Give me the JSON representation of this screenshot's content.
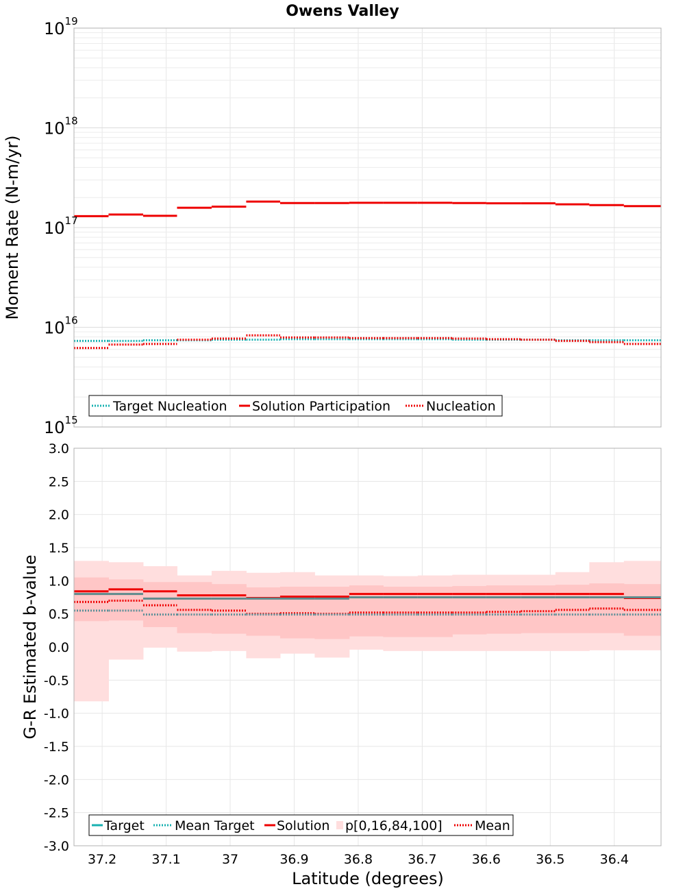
{
  "chart_data": [
    {
      "type": "line",
      "title": "Owens Valley",
      "xlabel": "",
      "ylabel": "Moment Rate (N-m/yr)",
      "yscale": "log",
      "ylim": [
        1000000000000000.0,
        1e+19
      ],
      "xlim": [
        37.244,
        36.327
      ],
      "x_reversed": true,
      "grid": true,
      "ytick_labels": [
        {
          "base": "10",
          "exp": "15"
        },
        {
          "base": "10",
          "exp": "16"
        },
        {
          "base": "10",
          "exp": "17"
        },
        {
          "base": "10",
          "exp": "18"
        },
        {
          "base": "10",
          "exp": "19"
        }
      ],
      "bin_edges": [
        37.244,
        37.19,
        37.136,
        37.083,
        37.029,
        36.975,
        36.922,
        36.868,
        36.814,
        36.761,
        36.707,
        36.653,
        36.6,
        36.546,
        36.492,
        36.439,
        36.385,
        36.327
      ],
      "legend_position": "bottom-left",
      "legend": [
        "Target Nucleation",
        "Solution Participation",
        "Nucleation"
      ],
      "series": [
        {
          "name": "Target Nucleation",
          "color": "#17b1b1",
          "style": "dotted",
          "values": [
            7300000000000000.0,
            7300000000000000.0,
            7400000000000000.0,
            7400000000000000.0,
            7500000000000000.0,
            7500000000000000.0,
            7600000000000000.0,
            7600000000000000.0,
            7600000000000000.0,
            7600000000000000.0,
            7600000000000000.0,
            7500000000000000.0,
            7500000000000000.0,
            7500000000000000.0,
            7400000000000000.0,
            7400000000000000.0,
            7400000000000000.0
          ]
        },
        {
          "name": "Solution Participation",
          "color": "#ee0000",
          "style": "solid",
          "values": [
            1.3e+17,
            1.35e+17,
            1.31e+17,
            1.58e+17,
            1.62e+17,
            1.82e+17,
            1.76e+17,
            1.76e+17,
            1.77e+17,
            1.77e+17,
            1.77e+17,
            1.76e+17,
            1.75e+17,
            1.75e+17,
            1.71e+17,
            1.68e+17,
            1.64e+17
          ]
        },
        {
          "name": "Nucleation",
          "color": "#ee0000",
          "style": "dotted",
          "values": [
            6200000000000000.0,
            6700000000000000.0,
            6800000000000000.0,
            7500000000000000.0,
            7700000000000000.0,
            8300000000000000.0,
            7900000000000000.0,
            7900000000000000.0,
            7800000000000000.0,
            7800000000000000.0,
            7800000000000000.0,
            7700000000000000.0,
            7600000000000000.0,
            7500000000000000.0,
            7300000000000000.0,
            7100000000000000.0,
            6800000000000000.0
          ]
        }
      ]
    },
    {
      "type": "line",
      "title": "",
      "xlabel": "Latitude (degrees)",
      "ylabel": "G-R Estimated b-value",
      "ylim": [
        -3.0,
        3.0
      ],
      "xlim": [
        37.244,
        36.327
      ],
      "x_reversed": true,
      "grid": true,
      "yticks": [
        3.0,
        2.5,
        2.0,
        1.5,
        1.0,
        0.5,
        0.0,
        -0.5,
        -1.0,
        -1.5,
        -2.0,
        -2.5,
        -3.0
      ],
      "ytick_labels": [
        "3.0",
        "2.5",
        "2.0",
        "1.5",
        "1.0",
        "0.5",
        "0.0",
        "-0.5",
        "-1.0",
        "-1.5",
        "-2.0",
        "-2.5",
        "-3.0"
      ],
      "xticks": [
        37.2,
        37.1,
        37.0,
        36.9,
        36.8,
        36.7,
        36.6,
        36.5,
        36.4
      ],
      "xtick_labels": [
        "37.2",
        "37.1",
        "37",
        "36.9",
        "36.8",
        "36.7",
        "36.6",
        "36.5",
        "36.4"
      ],
      "bin_edges": [
        37.244,
        37.19,
        37.136,
        37.083,
        37.029,
        36.975,
        36.922,
        36.868,
        36.814,
        36.761,
        36.707,
        36.653,
        36.6,
        36.546,
        36.492,
        36.439,
        36.385,
        36.327
      ],
      "legend_position": "bottom-left",
      "legend": [
        "Target",
        "Mean Target",
        "Solution",
        "p[0,16,84,100]",
        "Mean"
      ],
      "band_outer": {
        "name": "p[0,16,84,100]",
        "color": "#ffdede",
        "lower": [
          -0.82,
          -0.19,
          -0.01,
          -0.07,
          -0.06,
          -0.17,
          -0.1,
          -0.16,
          -0.04,
          -0.06,
          -0.06,
          -0.06,
          -0.06,
          -0.06,
          -0.06,
          -0.05,
          -0.05
        ],
        "upper": [
          1.3,
          1.28,
          1.22,
          1.08,
          1.15,
          1.12,
          1.13,
          1.08,
          1.08,
          1.07,
          1.08,
          1.09,
          1.09,
          1.09,
          1.13,
          1.28,
          1.3
        ]
      },
      "band_inner": {
        "name": "p[0,16,84,100]",
        "color": "#ffc6c6",
        "lower": [
          0.39,
          0.4,
          0.3,
          0.21,
          0.2,
          0.17,
          0.13,
          0.12,
          0.16,
          0.15,
          0.15,
          0.19,
          0.2,
          0.21,
          0.21,
          0.21,
          0.17
        ],
        "upper": [
          1.05,
          1.02,
          0.98,
          0.98,
          0.95,
          0.9,
          0.91,
          0.91,
          0.93,
          0.91,
          0.91,
          0.92,
          0.93,
          0.93,
          0.94,
          0.96,
          0.95
        ]
      },
      "series": [
        {
          "name": "Target",
          "color": "#17b1b1",
          "style": "solid",
          "values": [
            0.8,
            0.8,
            0.73,
            0.73,
            0.73,
            0.73,
            0.73,
            0.73,
            0.75,
            0.75,
            0.75,
            0.75,
            0.75,
            0.75,
            0.75,
            0.75,
            0.75
          ]
        },
        {
          "name": "Mean Target",
          "color": "#17b1b1",
          "style": "dotted",
          "values": [
            0.55,
            0.55,
            0.49,
            0.49,
            0.49,
            0.49,
            0.49,
            0.49,
            0.49,
            0.49,
            0.49,
            0.49,
            0.49,
            0.49,
            0.49,
            0.49,
            0.49
          ]
        },
        {
          "name": "Solution",
          "color": "#ee0000",
          "style": "solid",
          "values": [
            0.84,
            0.87,
            0.84,
            0.78,
            0.78,
            0.74,
            0.76,
            0.76,
            0.8,
            0.8,
            0.8,
            0.8,
            0.8,
            0.8,
            0.8,
            0.8,
            0.74
          ]
        },
        {
          "name": "Mean",
          "color": "#ee0000",
          "style": "dotted",
          "values": [
            0.68,
            0.7,
            0.63,
            0.56,
            0.55,
            0.5,
            0.51,
            0.5,
            0.52,
            0.52,
            0.52,
            0.52,
            0.53,
            0.54,
            0.56,
            0.58,
            0.56
          ]
        }
      ]
    }
  ]
}
